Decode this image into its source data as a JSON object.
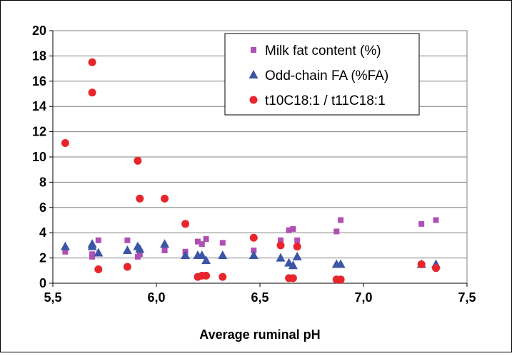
{
  "chart_data": {
    "type": "scatter",
    "xlabel": "Average ruminal pH",
    "ylabel": "",
    "xlim": [
      5.5,
      7.5
    ],
    "ylim": [
      0,
      20
    ],
    "x_ticks": [
      5.5,
      6.0,
      6.5,
      7.0,
      7.5
    ],
    "x_tick_labels": [
      "5,5",
      "6,0",
      "6,5",
      "7,0",
      "7,5"
    ],
    "y_ticks": [
      0,
      2,
      4,
      6,
      8,
      10,
      12,
      14,
      16,
      18,
      20
    ],
    "y_tick_labels": [
      "0",
      "2",
      "4",
      "6",
      "8",
      "10",
      "12",
      "14",
      "16",
      "18",
      "20"
    ],
    "grid": "horizontal",
    "legend_position": "top-right",
    "series": [
      {
        "name": "Milk fat content (%)",
        "marker": "square",
        "color": "#b04fb4",
        "points": [
          [
            5.56,
            2.5
          ],
          [
            5.69,
            2.3
          ],
          [
            5.69,
            2.1
          ],
          [
            5.72,
            3.4
          ],
          [
            5.86,
            3.4
          ],
          [
            5.91,
            2.1
          ],
          [
            5.92,
            2.3
          ],
          [
            6.04,
            2.6
          ],
          [
            6.14,
            2.5
          ],
          [
            6.2,
            3.3
          ],
          [
            6.22,
            3.1
          ],
          [
            6.24,
            3.5
          ],
          [
            6.32,
            3.2
          ],
          [
            6.47,
            2.6
          ],
          [
            6.6,
            3.4
          ],
          [
            6.64,
            4.2
          ],
          [
            6.66,
            4.3
          ],
          [
            6.68,
            3.4
          ],
          [
            6.87,
            4.1
          ],
          [
            6.89,
            5.0
          ],
          [
            7.28,
            4.7
          ],
          [
            7.35,
            5.0
          ]
        ]
      },
      {
        "name": "Odd-chain FA (%FA)",
        "marker": "triangle",
        "color": "#3a56a5",
        "points": [
          [
            5.56,
            2.9
          ],
          [
            5.69,
            3.1
          ],
          [
            5.69,
            2.9
          ],
          [
            5.72,
            2.4
          ],
          [
            5.86,
            2.6
          ],
          [
            5.91,
            2.9
          ],
          [
            5.92,
            2.7
          ],
          [
            6.04,
            3.1
          ],
          [
            6.14,
            2.2
          ],
          [
            6.2,
            2.2
          ],
          [
            6.22,
            2.2
          ],
          [
            6.24,
            1.8
          ],
          [
            6.32,
            2.2
          ],
          [
            6.47,
            2.2
          ],
          [
            6.6,
            2.0
          ],
          [
            6.64,
            1.6
          ],
          [
            6.66,
            1.4
          ],
          [
            6.68,
            2.1
          ],
          [
            6.87,
            1.5
          ],
          [
            6.89,
            1.5
          ],
          [
            7.28,
            1.5
          ],
          [
            7.35,
            1.5
          ]
        ]
      },
      {
        "name": "t10C18:1 / t11C18:1",
        "marker": "circle",
        "color": "#e8252a",
        "points": [
          [
            5.56,
            11.1
          ],
          [
            5.69,
            17.5
          ],
          [
            5.69,
            15.1
          ],
          [
            5.72,
            1.1
          ],
          [
            5.86,
            1.3
          ],
          [
            5.91,
            9.7
          ],
          [
            5.92,
            6.7
          ],
          [
            6.04,
            6.7
          ],
          [
            6.14,
            4.7
          ],
          [
            6.2,
            0.5
          ],
          [
            6.22,
            0.6
          ],
          [
            6.24,
            0.6
          ],
          [
            6.32,
            0.5
          ],
          [
            6.47,
            3.6
          ],
          [
            6.6,
            3.0
          ],
          [
            6.64,
            0.4
          ],
          [
            6.66,
            0.4
          ],
          [
            6.68,
            2.9
          ],
          [
            6.87,
            0.3
          ],
          [
            6.89,
            0.3
          ],
          [
            7.28,
            1.5
          ],
          [
            7.35,
            1.2
          ]
        ]
      }
    ]
  }
}
